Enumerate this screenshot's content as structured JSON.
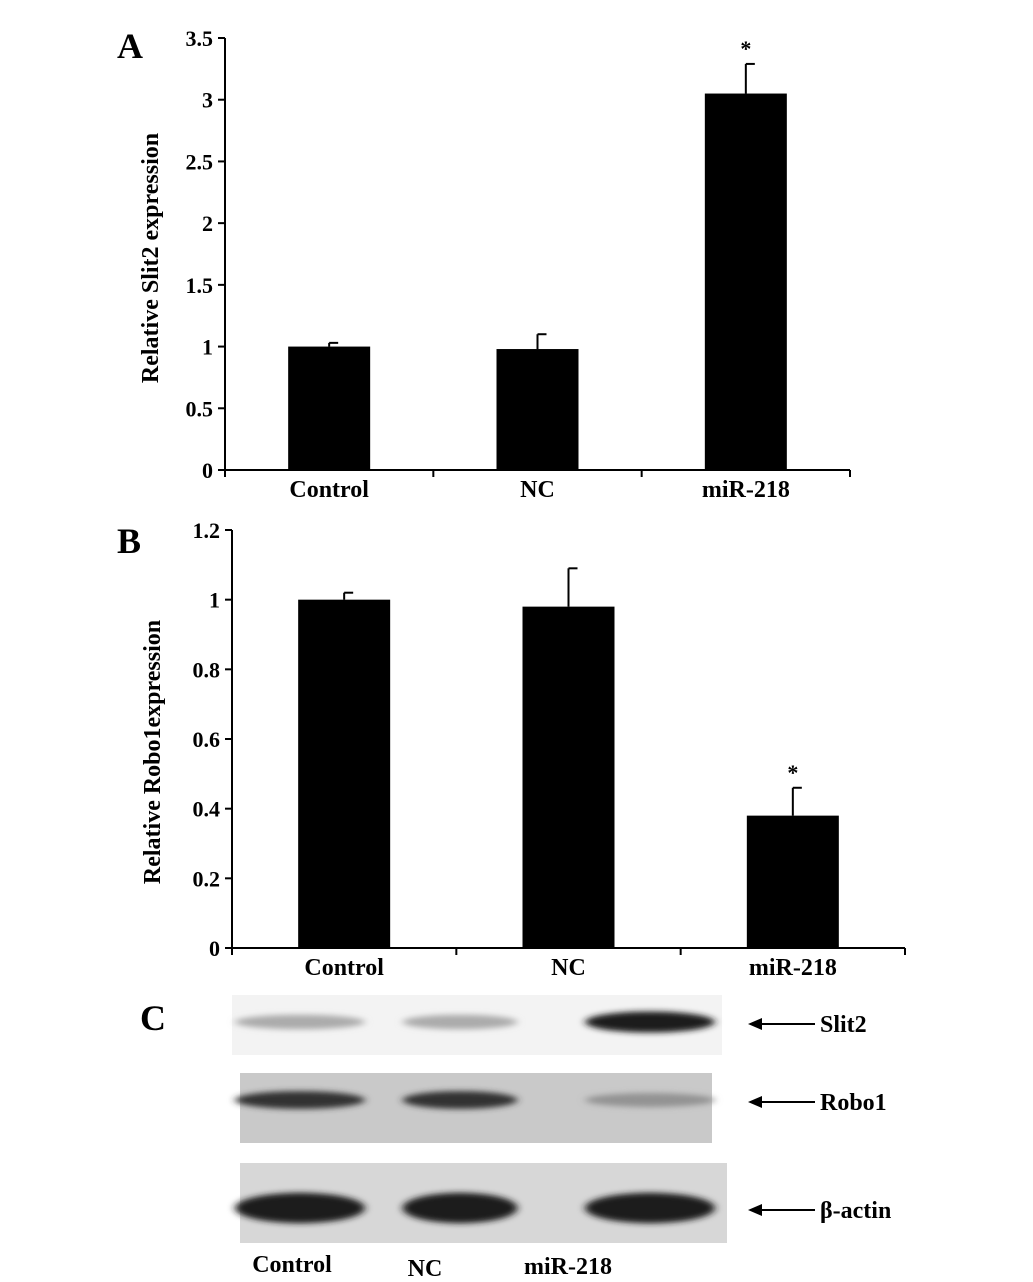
{
  "chart_data": [
    {
      "panel": "A",
      "type": "bar",
      "categories": [
        "Control",
        "NC",
        "miR-218"
      ],
      "values": [
        1.0,
        0.98,
        3.05
      ],
      "errors": [
        0.03,
        0.12,
        0.24
      ],
      "significance": [
        "",
        "",
        "*"
      ],
      "ylabel": "Relative Slit2 expression",
      "ylim": [
        0,
        3.5
      ],
      "yticks": [
        "0",
        "0.5",
        "1",
        "1.5",
        "2",
        "2.5",
        "3",
        "3.5"
      ],
      "bar_color": "#000000"
    },
    {
      "panel": "B",
      "type": "bar",
      "categories": [
        "Control",
        "NC",
        "miR-218"
      ],
      "values": [
        1.0,
        0.98,
        0.38
      ],
      "errors": [
        0.02,
        0.11,
        0.08
      ],
      "significance": [
        "",
        "",
        "*"
      ],
      "ylabel": "Relative Robo1expression",
      "ylim": [
        0,
        1.2
      ],
      "yticks": [
        "0",
        "0.2",
        "0.4",
        "0.6",
        "0.8",
        "1",
        "1.2"
      ],
      "bar_color": "#000000"
    }
  ],
  "blot": {
    "panel": "C",
    "rows": [
      {
        "label": "Slit2",
        "intensities": [
          0.35,
          0.35,
          0.95
        ]
      },
      {
        "label": "Robo1",
        "intensities": [
          0.85,
          0.85,
          0.45
        ]
      },
      {
        "label": "β-actin",
        "intensities": [
          0.95,
          0.95,
          0.95
        ]
      }
    ],
    "lanes": [
      "Control",
      "NC",
      "miR-218"
    ]
  }
}
